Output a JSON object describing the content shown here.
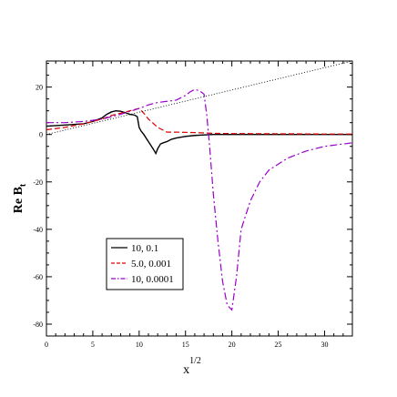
{
  "chart_data": {
    "type": "line",
    "title": "",
    "xlabel": {
      "base": "x",
      "sup": "1/2"
    },
    "ylabel": {
      "base": "Re B",
      "sub": "t"
    },
    "xlim": [
      0,
      33
    ],
    "ylim": [
      -85,
      31
    ],
    "xticks": [
      0,
      5,
      10,
      15,
      20,
      25,
      30
    ],
    "xtick_labels": [
      "0",
      "5",
      "10",
      "15",
      "20",
      "25",
      "30"
    ],
    "yticks": [
      20,
      0,
      -20,
      -40,
      -60,
      -80
    ],
    "ytick_labels": [
      "20",
      "0",
      "-20",
      "-40",
      "-60",
      "-80"
    ],
    "grid": false,
    "legend_position": "lower-left",
    "series": [
      {
        "name": "10,  0.1",
        "color": "#000000",
        "dash": "solid",
        "x": [
          0,
          2,
          4,
          5,
          6,
          6.5,
          7,
          7.5,
          8,
          8.5,
          9,
          9.5,
          9.8,
          10,
          10.2,
          10.5,
          11,
          11.5,
          11.8,
          12,
          12.3,
          12.6,
          13,
          13.5,
          14,
          15,
          16,
          17,
          18,
          20,
          25,
          30,
          33
        ],
        "y": [
          3.5,
          4,
          4.5,
          5.5,
          7,
          8.5,
          9.5,
          10,
          9.8,
          9.2,
          8.5,
          8.2,
          7.5,
          3,
          1.5,
          0,
          -3,
          -6,
          -8,
          -6,
          -4,
          -3.5,
          -3,
          -2,
          -1.5,
          -0.8,
          -0.4,
          -0.2,
          0,
          0,
          0,
          0,
          0
        ]
      },
      {
        "name": "5.0, 0.001",
        "color": "#dd0000",
        "dash": "dashed",
        "x": [
          0,
          2,
          4,
          6,
          7,
          8,
          9,
          10,
          10.5,
          11,
          12,
          13,
          14,
          16,
          18,
          20,
          25,
          30,
          33
        ],
        "y": [
          2,
          3,
          4.5,
          6.5,
          8,
          9,
          10,
          11,
          9,
          6.5,
          3,
          1,
          1,
          0.8,
          0.5,
          0.4,
          0.3,
          0.2,
          0.2
        ]
      },
      {
        "name": "10,  0.0001",
        "color": "#9900cc",
        "dash": "dashdot",
        "x": [
          0,
          2,
          4,
          6,
          8,
          10,
          11,
          12,
          13,
          14,
          15,
          15.5,
          16,
          16.5,
          17,
          17.3,
          17.6,
          18,
          18.5,
          19,
          19.5,
          20,
          20.5,
          21,
          22,
          23,
          24,
          26,
          28,
          30,
          33
        ],
        "y": [
          5,
          5,
          5.5,
          6.5,
          8.5,
          11,
          12.5,
          13.5,
          14,
          14.5,
          16.5,
          18,
          19,
          18.5,
          17,
          8,
          -5,
          -25,
          -45,
          -62,
          -72,
          -74,
          -60,
          -40,
          -28,
          -20,
          -15,
          -10,
          -7,
          -5,
          -3.5
        ]
      },
      {
        "name": "",
        "color": "#000000",
        "dash": "dotted",
        "x": [
          0,
          33
        ],
        "y": [
          0,
          31
        ]
      }
    ]
  }
}
